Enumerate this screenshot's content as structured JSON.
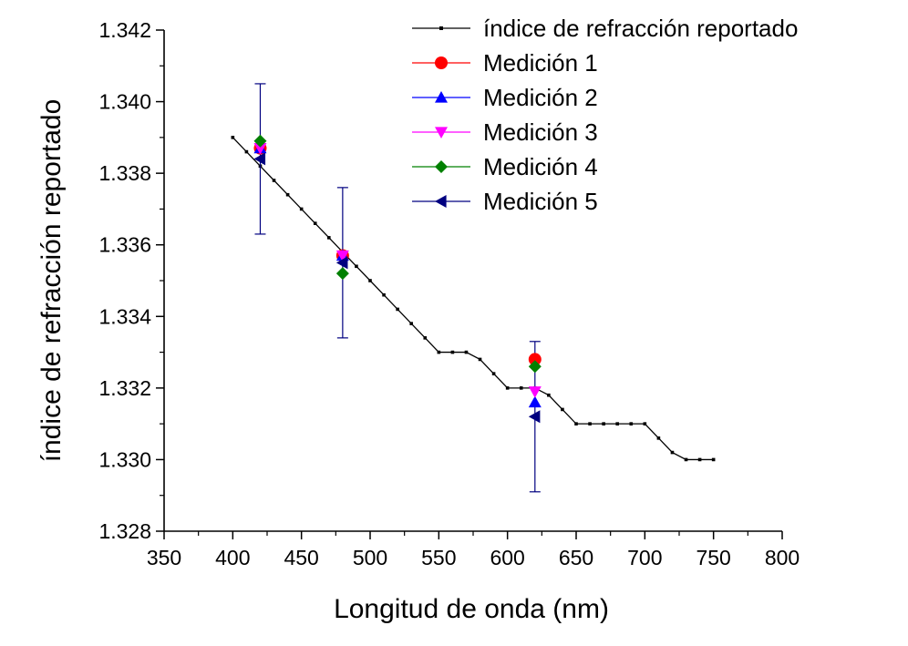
{
  "chart_data": {
    "type": "scatter",
    "xlabel": "Longitud de onda (nm)",
    "ylabel": "índice de refracción reportado",
    "xlim": [
      350,
      800
    ],
    "ylim": [
      1.328,
      1.342
    ],
    "x_ticks": [
      "350",
      "400",
      "450",
      "500",
      "550",
      "600",
      "650",
      "700",
      "750",
      "800"
    ],
    "y_ticks": [
      "1.328",
      "1.330",
      "1.332",
      "1.334",
      "1.336",
      "1.338",
      "1.340",
      "1.342"
    ],
    "legend_placement": "top-right",
    "reference": {
      "name": "índice de refracción reportado",
      "color": "#000000",
      "x": [
        400,
        410,
        420,
        430,
        440,
        450,
        460,
        470,
        480,
        490,
        500,
        510,
        520,
        530,
        540,
        550,
        560,
        570,
        580,
        590,
        600,
        610,
        620,
        630,
        640,
        650,
        660,
        670,
        680,
        690,
        700,
        710,
        720,
        730,
        740,
        750
      ],
      "y": [
        1.339,
        1.3386,
        1.3382,
        1.3378,
        1.3374,
        1.337,
        1.3366,
        1.3362,
        1.3358,
        1.3354,
        1.335,
        1.3346,
        1.3342,
        1.3338,
        1.3334,
        1.333,
        1.333,
        1.333,
        1.3328,
        1.3324,
        1.332,
        1.332,
        1.332,
        1.3318,
        1.3314,
        1.331,
        1.331,
        1.331,
        1.331,
        1.331,
        1.331,
        1.3306,
        1.3302,
        1.33,
        1.33,
        1.33
      ]
    },
    "series": [
      {
        "name": "Medición 1",
        "color": "#ff0000",
        "marker": "circle",
        "x": [
          420,
          480,
          620
        ],
        "y": [
          1.3387,
          1.3357,
          1.3328
        ]
      },
      {
        "name": "Medición 2",
        "color": "#0000ff",
        "marker": "triangle-up",
        "x": [
          420,
          480,
          620
        ],
        "y": [
          1.3387,
          1.3357,
          1.3316
        ]
      },
      {
        "name": "Medición 3",
        "color": "#ff00ff",
        "marker": "triangle-down",
        "x": [
          420,
          480,
          620
        ],
        "y": [
          1.3387,
          1.3357,
          1.3319
        ]
      },
      {
        "name": "Medición 4",
        "color": "#008000",
        "marker": "diamond",
        "x": [
          420,
          480,
          620
        ],
        "y": [
          1.3389,
          1.3352,
          1.3326
        ]
      },
      {
        "name": "Medición 5",
        "color": "#000080",
        "marker": "triangle-left",
        "x": [
          420,
          480,
          620
        ],
        "y": [
          1.3384,
          1.3355,
          1.3312
        ]
      }
    ],
    "error_bars": {
      "color": "#000080",
      "x": [
        420,
        480,
        620
      ],
      "center": [
        1.3384,
        1.3355,
        1.3312
      ],
      "low": [
        1.3363,
        1.3334,
        1.3291
      ],
      "high": [
        1.3405,
        1.3376,
        1.3333
      ]
    }
  }
}
